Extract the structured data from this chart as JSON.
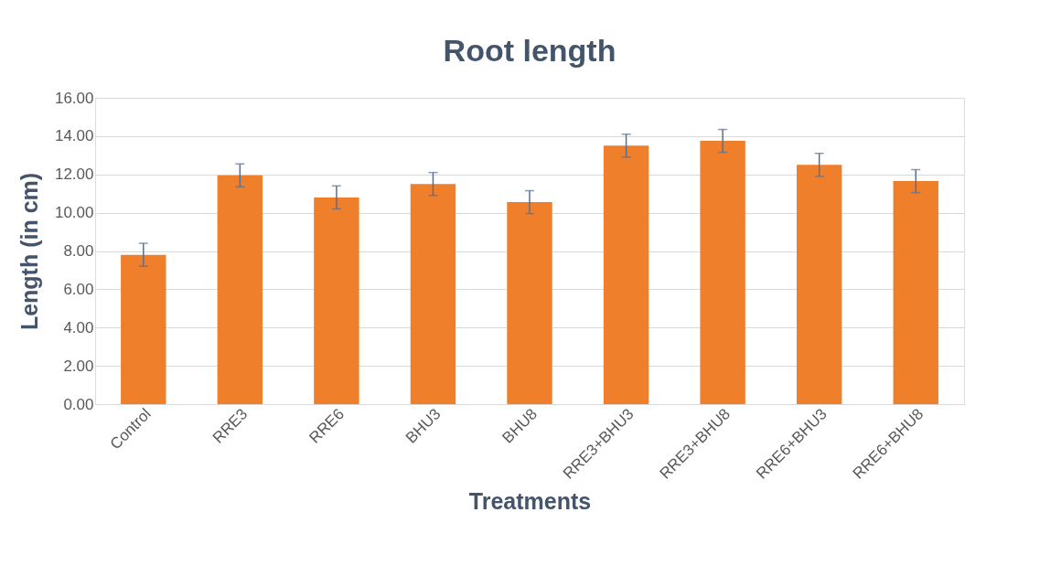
{
  "chart_data": {
    "type": "bar",
    "title": "Root length",
    "xlabel": "Treatments",
    "ylabel": "Length (in cm)",
    "categories": [
      "Control",
      "RRE3",
      "RRE6",
      "BHU3",
      "BHU8",
      "RRE3+BHU3",
      "RRE3+BHU8",
      "RRE6+BHU3",
      "RRE6+BHU8"
    ],
    "series": [
      {
        "color": "#f07f2c",
        "values": [
          7.8,
          11.95,
          10.8,
          11.5,
          10.55,
          13.5,
          13.75,
          12.5,
          11.65
        ],
        "errors": [
          0.6,
          0.6,
          0.6,
          0.6,
          0.6,
          0.6,
          0.6,
          0.6,
          0.6
        ]
      }
    ],
    "ylim": [
      0,
      16
    ],
    "yticks": [
      {
        "value": 0,
        "label": "0.00"
      },
      {
        "value": 2,
        "label": "2.00"
      },
      {
        "value": 4,
        "label": "4.00"
      },
      {
        "value": 6,
        "label": "6.00"
      },
      {
        "value": 8,
        "label": "8.00"
      },
      {
        "value": 10,
        "label": "10.00"
      },
      {
        "value": 12,
        "label": "12.00"
      },
      {
        "value": 14,
        "label": "14.00"
      },
      {
        "value": 16,
        "label": "16.00"
      }
    ],
    "grid": "y"
  }
}
